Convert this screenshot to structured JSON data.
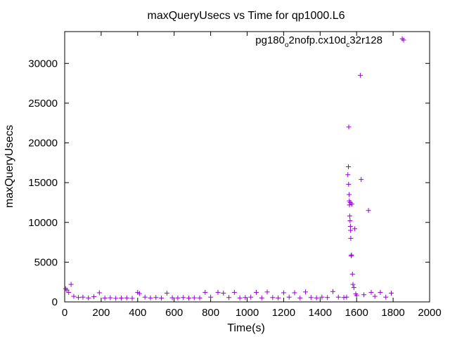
{
  "chart_data": {
    "type": "scatter",
    "title": "maxQueryUsecs vs Time for qp1000.L6",
    "xlabel": "Time(s)",
    "ylabel": "maxQueryUsecs",
    "xlim": [
      0,
      2000
    ],
    "ylim": [
      0,
      34000
    ],
    "xticks": [
      "0",
      "200",
      "400",
      "600",
      "800",
      "1000",
      "1200",
      "1400",
      "1600",
      "1800",
      "2000"
    ],
    "yticks": [
      "0",
      "5000",
      "10000",
      "15000",
      "20000",
      "25000",
      "30000"
    ],
    "xtick_values": [
      0,
      200,
      400,
      600,
      800,
      1000,
      1200,
      1400,
      1600,
      1800,
      2000
    ],
    "ytick_values": [
      0,
      5000,
      10000,
      15000,
      20000,
      25000,
      30000
    ],
    "grid": false,
    "legend_position": "top-right",
    "marker": "plus",
    "color": "#9400d3",
    "series": [
      {
        "name": "pg180_o2nofp.cx10d_c32r128",
        "legend_main": [
          "pg180",
          "2nofp.cx10d",
          "32r128"
        ],
        "legend_subs": [
          "o",
          "c"
        ],
        "points": [
          [
            5,
            1650
          ],
          [
            12,
            1500
          ],
          [
            22,
            1200
          ],
          [
            35,
            2200
          ],
          [
            50,
            700
          ],
          [
            75,
            550
          ],
          [
            100,
            600
          ],
          [
            130,
            500
          ],
          [
            160,
            650
          ],
          [
            190,
            1150
          ],
          [
            220,
            480
          ],
          [
            250,
            520
          ],
          [
            280,
            450
          ],
          [
            310,
            480
          ],
          [
            340,
            500
          ],
          [
            370,
            450
          ],
          [
            400,
            1200
          ],
          [
            410,
            1050
          ],
          [
            440,
            600
          ],
          [
            470,
            500
          ],
          [
            500,
            550
          ],
          [
            530,
            480
          ],
          [
            560,
            1100
          ],
          [
            590,
            520
          ],
          [
            620,
            500
          ],
          [
            650,
            550
          ],
          [
            680,
            480
          ],
          [
            710,
            520
          ],
          [
            740,
            500
          ],
          [
            770,
            1200
          ],
          [
            800,
            600
          ],
          [
            840,
            1200
          ],
          [
            870,
            1100
          ],
          [
            900,
            550
          ],
          [
            930,
            1200
          ],
          [
            960,
            500
          ],
          [
            990,
            550
          ],
          [
            1020,
            600
          ],
          [
            1050,
            1200
          ],
          [
            1080,
            500
          ],
          [
            1110,
            1250
          ],
          [
            1140,
            550
          ],
          [
            1170,
            500
          ],
          [
            1200,
            1150
          ],
          [
            1230,
            600
          ],
          [
            1260,
            1150
          ],
          [
            1290,
            500
          ],
          [
            1320,
            1250
          ],
          [
            1350,
            550
          ],
          [
            1380,
            500
          ],
          [
            1410,
            600
          ],
          [
            1440,
            550
          ],
          [
            1470,
            1300
          ],
          [
            1500,
            600
          ],
          [
            1530,
            550
          ],
          [
            1545,
            600
          ],
          [
            1552,
            16000
          ],
          [
            1555,
            17000
          ],
          [
            1556,
            14800
          ],
          [
            1557,
            22000
          ],
          [
            1559,
            13500
          ],
          [
            1560,
            12700
          ],
          [
            1561,
            12200
          ],
          [
            1562,
            10800
          ],
          [
            1564,
            10200
          ],
          [
            1565,
            12500
          ],
          [
            1566,
            9500
          ],
          [
            1567,
            9000
          ],
          [
            1568,
            8000
          ],
          [
            1570,
            5800
          ],
          [
            1572,
            5900
          ],
          [
            1574,
            12300
          ],
          [
            1577,
            3500
          ],
          [
            1580,
            2200
          ],
          [
            1585,
            1800
          ],
          [
            1590,
            9200
          ],
          [
            1595,
            1000
          ],
          [
            1600,
            800
          ],
          [
            1620,
            28500
          ],
          [
            1625,
            15400
          ],
          [
            1640,
            900
          ],
          [
            1665,
            11500
          ],
          [
            1680,
            1200
          ],
          [
            1700,
            700
          ],
          [
            1730,
            1200
          ],
          [
            1760,
            600
          ],
          [
            1790,
            1100
          ],
          [
            1850,
            33100
          ]
        ]
      }
    ]
  }
}
